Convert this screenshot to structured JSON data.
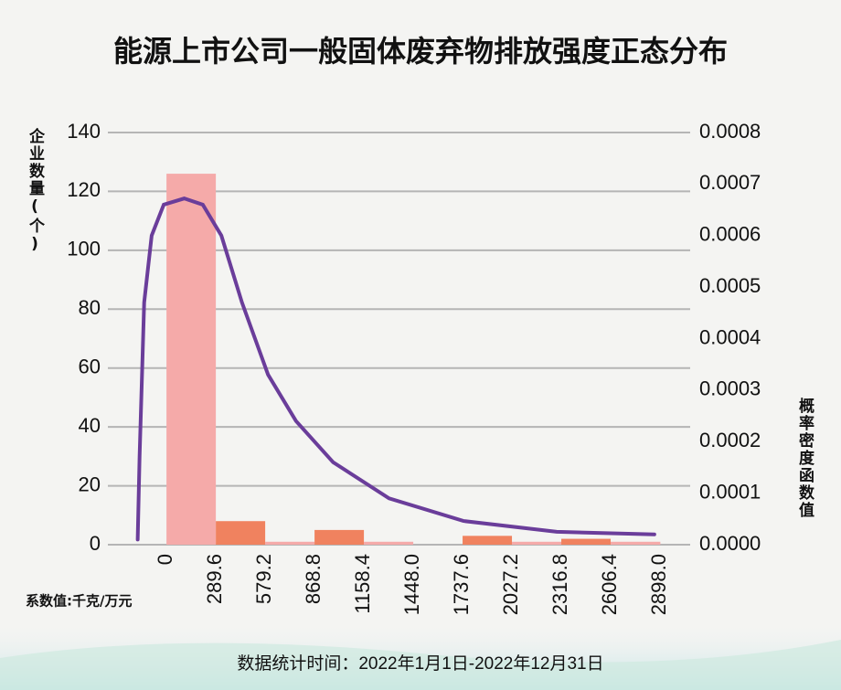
{
  "chart_data": {
    "type": "histogram",
    "title": "能源上市公司一般固体废弃物排放强度正态分布",
    "y_label": "企业数量(个)",
    "y2_label": "概率密度函数值",
    "note": "系数值:千克/万元",
    "footer": "数据统计时间：2022年1月1日-2022年12月31日",
    "bins": [
      0,
      289.6,
      579.2,
      868.8,
      1158.4,
      1448.0,
      1737.6,
      2027.2,
      2316.8,
      2606.4,
      2898.0
    ],
    "values": [
      126,
      8,
      1,
      5,
      1,
      0,
      3,
      1,
      2,
      1
    ],
    "colors": [
      "#f5aaa9",
      "#f0825f",
      "#f5aaa9",
      "#f0825f",
      "#f5aaa9",
      "#f5aaa9",
      "#f0825f",
      "#f5aaa9",
      "#f0825f",
      "#f5aaa9"
    ],
    "xticks": [
      0,
      289.6,
      579.2,
      868.8,
      1158.4,
      {
        "value": 1448,
        "label": "1448.0"
      },
      1737.6,
      2027.2,
      2316.8,
      2606.4,
      {
        "value": 2898,
        "label": "2898.0"
      }
    ],
    "xlim": [
      -344,
      3073
    ],
    "ylim": [
      0,
      140
    ],
    "yticks": [
      0,
      20,
      40,
      60,
      80,
      100,
      120,
      140
    ],
    "y2lim": [
      0,
      0.0008
    ],
    "y2ticks": [
      {
        "value": 0,
        "label": "0.0000"
      },
      0.0001,
      0.0002,
      0.0003,
      0.0004,
      0.0005,
      0.0006,
      0.0007,
      0.0008
    ],
    "grid": true,
    "curve": {
      "axis": "y2",
      "color": "#6a3d9a",
      "x": [
        -169,
        -158,
        -131,
        -87,
        -16,
        104,
        213,
        322,
        443,
        596,
        760,
        978,
        1306,
        1743,
        2290,
        2863
      ],
      "values": [
        1e-05,
        0.00017,
        0.00047,
        0.0006,
        0.00066,
        0.000672,
        0.00066,
        0.0006,
        0.00047,
        0.00033,
        0.00024,
        0.00016,
        9e-05,
        4.6e-05,
        2.5e-05,
        2e-05
      ]
    }
  }
}
